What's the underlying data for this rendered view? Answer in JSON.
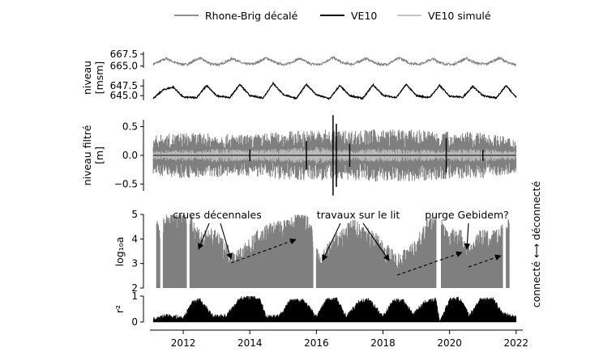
{
  "chart_data": {
    "type": "line",
    "x_axis": {
      "tick_labels": [
        "2012",
        "2014",
        "2016",
        "2018",
        "2020",
        "2022"
      ],
      "ticks": [
        2012,
        2014,
        2016,
        2018,
        2020,
        2022
      ],
      "range": [
        2011.0,
        2022.2
      ]
    },
    "legend": {
      "placement": "top-center",
      "entries": [
        {
          "name": "Rhone-Brig décalé",
          "color": "#7f7f7f"
        },
        {
          "name": "VE10",
          "color": "#000000"
        },
        {
          "name": "VE10 simulé",
          "color": "#bdbdbd"
        }
      ]
    },
    "panels": [
      {
        "id": "level-rhone",
        "ylabel": "",
        "ylim": [
          664.6,
          668.0
        ],
        "yticks": [
          665.0,
          667.5
        ],
        "ytick_labels": [
          "665.0",
          "667.5"
        ],
        "series": [
          {
            "name": "Rhone-Brig décalé",
            "color": "#7f7f7f",
            "x": [
              2011.1,
              2011.5,
              2011.8,
              2012.1,
              2012.5,
              2012.8,
              2013.1,
              2013.5,
              2013.8,
              2014.1,
              2014.5,
              2014.8,
              2015.1,
              2015.5,
              2015.8,
              2016.1,
              2016.5,
              2016.8,
              2017.1,
              2017.5,
              2017.8,
              2018.1,
              2018.5,
              2018.8,
              2019.1,
              2019.5,
              2019.8,
              2020.1,
              2020.5,
              2020.8,
              2021.1,
              2021.5,
              2021.8,
              2022.0
            ],
            "y": [
              665.4,
              666.6,
              665.6,
              665.3,
              666.7,
              665.5,
              665.3,
              666.6,
              665.5,
              665.4,
              666.7,
              665.6,
              665.3,
              666.6,
              665.5,
              665.3,
              666.8,
              665.6,
              665.4,
              666.6,
              665.5,
              665.3,
              666.7,
              665.6,
              665.4,
              666.5,
              665.5,
              665.3,
              666.6,
              665.6,
              665.4,
              666.7,
              665.5,
              665.4
            ]
          }
        ]
      },
      {
        "id": "level-ve10",
        "ylabel": "niveau\n[msm]",
        "ylim": [
          643.8,
          649.2
        ],
        "yticks": [
          645.0,
          647.5
        ],
        "ytick_labels": [
          "645.0",
          "647.5"
        ],
        "series": [
          {
            "name": "VE10",
            "color": "#000000",
            "x": [
              2011.1,
              2011.4,
              2011.7,
              2012.0,
              2012.4,
              2012.7,
              2013.0,
              2013.4,
              2013.7,
              2014.0,
              2014.4,
              2014.7,
              2015.0,
              2015.4,
              2015.7,
              2016.0,
              2016.4,
              2016.7,
              2017.0,
              2017.4,
              2017.7,
              2018.0,
              2018.4,
              2018.7,
              2019.0,
              2019.4,
              2019.7,
              2020.0,
              2020.4,
              2020.7,
              2021.0,
              2021.4,
              2021.7,
              2022.0
            ],
            "y": [
              644.3,
              646.5,
              647.2,
              644.6,
              644.5,
              647.6,
              645.0,
              644.5,
              647.9,
              645.0,
              644.4,
              648.2,
              645.3,
              644.3,
              647.9,
              645.2,
              644.2,
              647.6,
              645.0,
              644.3,
              647.8,
              645.1,
              644.5,
              647.9,
              645.0,
              644.5,
              647.6,
              644.9,
              644.6,
              647.4,
              645.0,
              644.4,
              647.6,
              644.6
            ]
          }
        ]
      },
      {
        "id": "filtered-level",
        "ylabel": "niveau filtré\n[m]",
        "ylim": [
          -0.62,
          0.62
        ],
        "yticks": [
          -0.5,
          0.0,
          0.5
        ],
        "ytick_labels": [
          "−0.5",
          "0.0",
          "0.5"
        ],
        "series": [
          {
            "name": "Rhone-Brig décalé",
            "color": "#7f7f7f",
            "amplitude_profile": {
              "x": [
                2011.1,
                2012.0,
                2013.0,
                2014.0,
                2015.0,
                2016.0,
                2017.0,
                2018.0,
                2019.0,
                2020.0,
                2021.0,
                2022.0
              ],
              "amp": [
                0.35,
                0.4,
                0.38,
                0.36,
                0.42,
                0.45,
                0.44,
                0.46,
                0.45,
                0.42,
                0.4,
                0.3
              ]
            }
          },
          {
            "name": "VE10 simulé",
            "color": "#bdbdbd",
            "amplitude_profile": {
              "x": [
                2011.1,
                2012.0,
                2013.0,
                2014.0,
                2015.0,
                2016.0,
                2017.0,
                2018.0,
                2019.0,
                2020.0,
                2021.0,
                2022.0
              ],
              "amp": [
                0.08,
                0.1,
                0.12,
                0.1,
                0.12,
                0.15,
                0.1,
                0.12,
                0.1,
                0.1,
                0.12,
                0.08
              ]
            }
          },
          {
            "name": "VE10",
            "color": "#000000",
            "spikes": {
              "x": [
                2014.0,
                2015.7,
                2016.5,
                2016.6,
                2017.0,
                2019.9,
                2021.0
              ],
              "amp": [
                0.1,
                0.25,
                0.7,
                0.55,
                0.2,
                0.3,
                0.1
              ]
            }
          }
        ]
      },
      {
        "id": "log-a",
        "ylabel": "log₁₀a",
        "ylim": [
          2.0,
          5.0
        ],
        "yticks": [
          2,
          3,
          4,
          5
        ],
        "ytick_labels": [
          "2",
          "3",
          "4",
          "5"
        ],
        "series": [
          {
            "name": "log10 a",
            "color": "#7f7f7f",
            "x": [
              2011.2,
              2011.6,
              2012.0,
              2012.3,
              2012.6,
              2012.9,
              2013.2,
              2013.5,
              2013.8,
              2014.2,
              2014.5,
              2014.8,
              2015.2,
              2015.5,
              2015.8,
              2016.1,
              2016.5,
              2016.8,
              2017.1,
              2017.5,
              2017.8,
              2018.1,
              2018.4,
              2018.7,
              2019.0,
              2019.3,
              2019.6,
              2020.0,
              2020.3,
              2020.6,
              2020.9,
              2021.2,
              2021.5,
              2021.8
            ],
            "y": [
              4.3,
              4.7,
              4.9,
              4.4,
              3.9,
              4.0,
              3.6,
              3.1,
              3.3,
              3.9,
              4.2,
              4.3,
              4.4,
              4.8,
              4.4,
              2.9,
              3.7,
              4.0,
              4.4,
              4.1,
              3.8,
              3.4,
              3.0,
              3.2,
              3.6,
              4.3,
              4.7,
              3.9,
              4.1,
              3.3,
              4.0,
              3.9,
              4.0,
              4.7
            ],
            "gaps": [
              [
                2011.3,
                2011.4
              ],
              [
                2012.1,
                2012.2
              ],
              [
                2015.9,
                2016.0
              ],
              [
                2019.6,
                2019.75
              ],
              [
                2021.6,
                2021.7
              ]
            ]
          }
        ],
        "annotations": [
          {
            "text": "crues décennales"
          },
          {
            "text": "travaux sur le lit"
          },
          {
            "text": "purge Gebidem?"
          },
          {
            "text": "connecté ⟷ déconnecté"
          }
        ]
      },
      {
        "id": "r2",
        "ylabel": "r²",
        "ylim": [
          0.0,
          1.0
        ],
        "yticks": [
          0,
          1
        ],
        "ytick_labels": [
          "0",
          "1"
        ],
        "series": [
          {
            "name": "r2",
            "color": "#000000",
            "x": [
              2011.1,
              2011.5,
              2012.0,
              2012.3,
              2012.5,
              2012.9,
              2013.3,
              2013.7,
              2014.0,
              2014.3,
              2014.5,
              2014.9,
              2015.2,
              2015.6,
              2016.0,
              2016.3,
              2016.6,
              2016.9,
              2017.3,
              2017.6,
              2018.0,
              2018.3,
              2018.6,
              2018.9,
              2019.3,
              2019.6,
              2019.7,
              2020.0,
              2020.3,
              2020.6,
              2020.9,
              2021.3,
              2021.6,
              2022.0
            ],
            "y": [
              0.1,
              0.25,
              0.15,
              0.8,
              0.85,
              0.2,
              0.25,
              0.9,
              0.95,
              0.9,
              0.2,
              0.25,
              0.8,
              0.85,
              0.2,
              0.85,
              0.9,
              0.2,
              0.8,
              0.85,
              0.2,
              0.8,
              0.85,
              0.3,
              0.8,
              0.85,
              0.0,
              0.85,
              0.9,
              0.25,
              0.85,
              0.9,
              0.3,
              0.2
            ]
          }
        ]
      }
    ]
  }
}
